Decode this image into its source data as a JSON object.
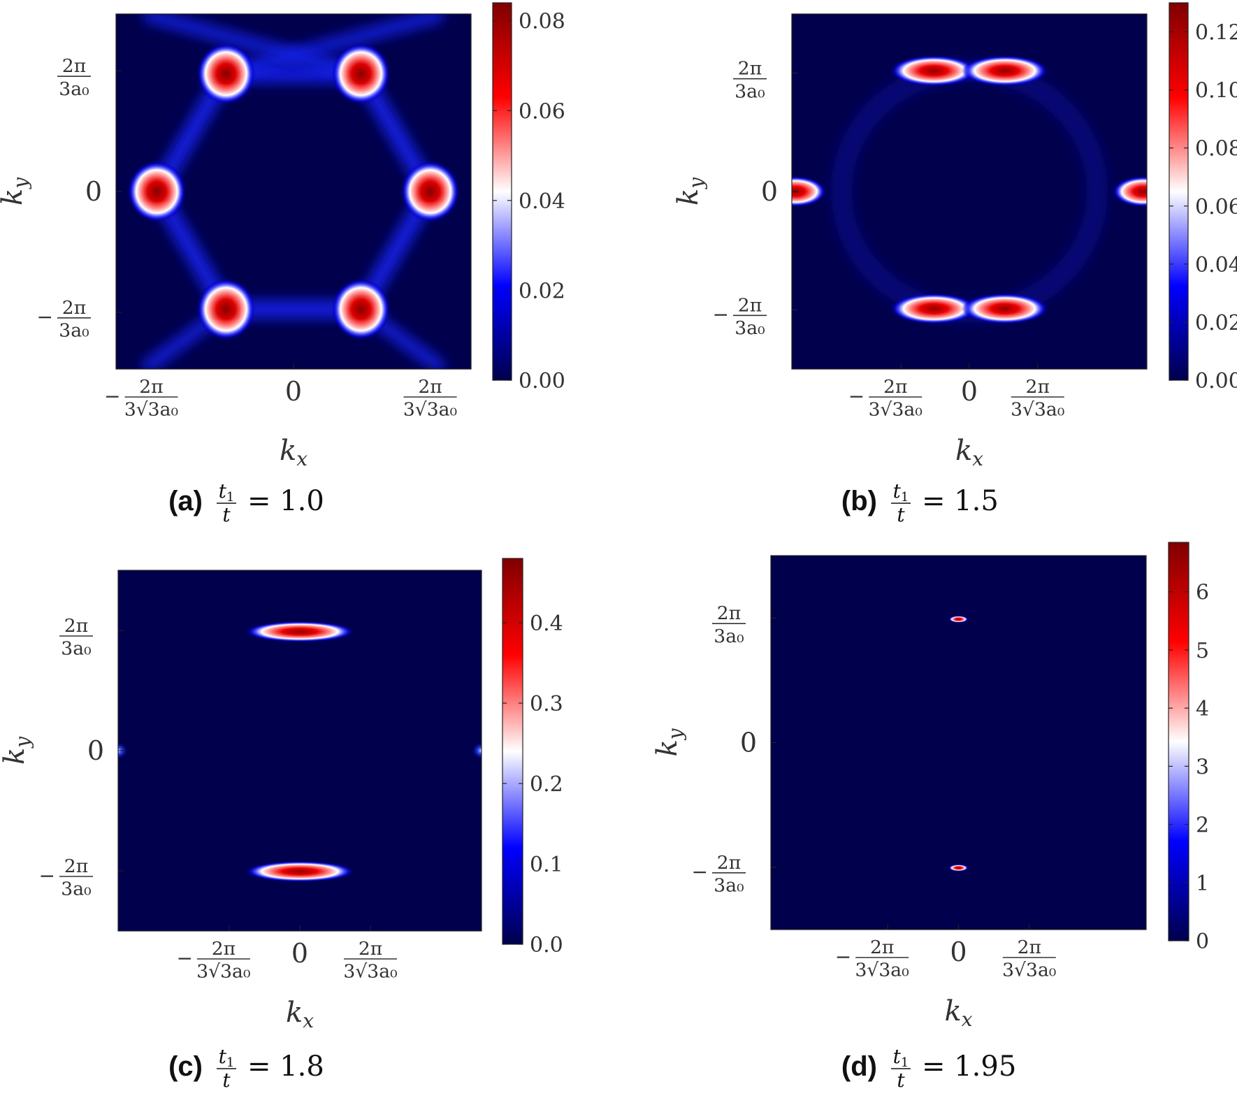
{
  "chart_data": [
    {
      "type": "heatmap",
      "panel_label": "(a)",
      "caption_ratio_num": "t",
      "caption_ratio_num_sub": "1",
      "caption_ratio_den": "t",
      "caption_value": "= 1.0",
      "xlabel": "k",
      "xlabel_sub": "x",
      "ylabel": "k",
      "ylabel_sub": "y",
      "xticks": [
        {
          "value": -0.3849,
          "sign": "−",
          "num": "2π",
          "den": "3√3a₀"
        },
        {
          "value": 0,
          "text": "0"
        },
        {
          "value": 0.3849,
          "sign": "",
          "num": "2π",
          "den": "3√3a₀"
        }
      ],
      "yticks": [
        {
          "value": 0.6667,
          "sign": "",
          "num": "2π",
          "den": "3a₀"
        },
        {
          "value": 0,
          "text": "0"
        },
        {
          "value": -0.6667,
          "sign": "−",
          "num": "2π",
          "den": "3a₀"
        }
      ],
      "xlim": [
        -0.5,
        0.5
      ],
      "ylim": [
        -0.98,
        0.98
      ],
      "colorbar": {
        "ticks": [
          "0.00",
          "0.02",
          "0.04",
          "0.06",
          "0.08"
        ],
        "tick_values": [
          0,
          0.02,
          0.04,
          0.06,
          0.08
        ],
        "vmin": 0,
        "vmax": 0.084,
        "colormap": "seismic"
      },
      "hotspots": [
        {
          "kx": -0.19,
          "ky": 0.65,
          "peak": 0.084,
          "shape": "triangle"
        },
        {
          "kx": 0.19,
          "ky": 0.65,
          "peak": 0.084,
          "shape": "triangle"
        },
        {
          "kx": -0.385,
          "ky": 0.0,
          "peak": 0.084,
          "shape": "triangle"
        },
        {
          "kx": 0.385,
          "ky": 0.0,
          "peak": 0.084,
          "shape": "triangle"
        },
        {
          "kx": -0.19,
          "ky": -0.65,
          "peak": 0.084,
          "shape": "triangle"
        },
        {
          "kx": 0.19,
          "ky": -0.65,
          "peak": 0.084,
          "shape": "triangle"
        }
      ],
      "background_feature": "hexagonal ring of low intensity connecting hotspots"
    },
    {
      "type": "heatmap",
      "panel_label": "(b)",
      "caption_ratio_num": "t",
      "caption_ratio_num_sub": "1",
      "caption_ratio_den": "t",
      "caption_value": "= 1.5",
      "xlabel": "k",
      "xlabel_sub": "x",
      "ylabel": "k",
      "ylabel_sub": "y",
      "xticks": [
        {
          "value": -0.3849,
          "sign": "−",
          "num": "2π",
          "den": "3√3a₀"
        },
        {
          "value": 0,
          "text": "0"
        },
        {
          "value": 0.3849,
          "sign": "",
          "num": "2π",
          "den": "3√3a₀"
        }
      ],
      "yticks": [
        {
          "value": 0.6667,
          "sign": "",
          "num": "2π",
          "den": "3a₀"
        },
        {
          "value": 0,
          "text": "0"
        },
        {
          "value": -0.6667,
          "sign": "−",
          "num": "2π",
          "den": "3a₀"
        }
      ],
      "xlim": [
        -1.0,
        1.0
      ],
      "ylim": [
        -1.0,
        1.0
      ],
      "colorbar": {
        "ticks": [
          "0.00",
          "0.02",
          "0.04",
          "0.06",
          "0.08",
          "0.10",
          "0.12"
        ],
        "tick_values": [
          0,
          0.02,
          0.04,
          0.06,
          0.08,
          0.1,
          0.12
        ],
        "vmin": 0,
        "vmax": 0.13,
        "colormap": "seismic"
      },
      "hotspots": [
        {
          "kx": -0.2,
          "ky": 0.68,
          "peak": 0.13,
          "shape": "lobe"
        },
        {
          "kx": 0.2,
          "ky": 0.68,
          "peak": 0.13,
          "shape": "lobe"
        },
        {
          "kx": -0.2,
          "ky": -0.66,
          "peak": 0.13,
          "shape": "lobe"
        },
        {
          "kx": 0.2,
          "ky": -0.66,
          "peak": 0.13,
          "shape": "lobe"
        },
        {
          "kx": -0.98,
          "ky": 0.0,
          "peak": 0.13,
          "shape": "lobe"
        },
        {
          "kx": 0.98,
          "ky": 0.0,
          "peak": 0.13,
          "shape": "lobe"
        }
      ],
      "background_feature": "faint ring of low intensity"
    },
    {
      "type": "heatmap",
      "panel_label": "(c)",
      "caption_ratio_num": "t",
      "caption_ratio_num_sub": "1",
      "caption_ratio_den": "t",
      "caption_value": "= 1.8",
      "xlabel": "k",
      "xlabel_sub": "x",
      "ylabel": "k",
      "ylabel_sub": "y",
      "xticks": [
        {
          "value": -0.3849,
          "sign": "−",
          "num": "2π",
          "den": "3√3a₀"
        },
        {
          "value": 0,
          "text": "0"
        },
        {
          "value": 0.3849,
          "sign": "",
          "num": "2π",
          "den": "3√3a₀"
        }
      ],
      "yticks": [
        {
          "value": 0.6667,
          "sign": "",
          "num": "2π",
          "den": "3a₀"
        },
        {
          "value": 0,
          "text": "0"
        },
        {
          "value": -0.6667,
          "sign": "−",
          "num": "2π",
          "den": "3a₀"
        }
      ],
      "xlim": [
        -0.99,
        0.99
      ],
      "ylim": [
        -1.0,
        1.0
      ],
      "colorbar": {
        "ticks": [
          "0.0",
          "0.1",
          "0.2",
          "0.3",
          "0.4"
        ],
        "tick_values": [
          0,
          0.1,
          0.2,
          0.3,
          0.4
        ],
        "vmin": 0,
        "vmax": 0.48,
        "colormap": "seismic"
      },
      "hotspots": [
        {
          "kx": 0.0,
          "ky": 0.66,
          "peak": 0.48,
          "shape": "ellipse"
        },
        {
          "kx": 0.0,
          "ky": -0.67,
          "peak": 0.48,
          "shape": "ellipse"
        },
        {
          "kx": -0.99,
          "ky": 0.0,
          "peak": 0.1,
          "shape": "edge"
        },
        {
          "kx": 0.99,
          "ky": 0.0,
          "peak": 0.1,
          "shape": "edge"
        }
      ]
    },
    {
      "type": "heatmap",
      "panel_label": "(d)",
      "caption_ratio_num": "t",
      "caption_ratio_num_sub": "1",
      "caption_ratio_den": "t",
      "caption_value": "= 1.95",
      "xlabel": "k",
      "xlabel_sub": "x",
      "ylabel": "k",
      "ylabel_sub": "y",
      "xticks": [
        {
          "value": -0.3849,
          "sign": "−",
          "num": "2π",
          "den": "3√3a₀"
        },
        {
          "value": 0,
          "text": "0"
        },
        {
          "value": 0.3849,
          "sign": "",
          "num": "2π",
          "den": "3√3a₀"
        }
      ],
      "yticks": [
        {
          "value": 0.6667,
          "sign": "",
          "num": "2π",
          "den": "3a₀"
        },
        {
          "value": 0,
          "text": "0"
        },
        {
          "value": -0.6667,
          "sign": "−",
          "num": "2π",
          "den": "3a₀"
        }
      ],
      "xlim": [
        -1.02,
        1.02
      ],
      "ylim": [
        -1.0,
        1.0
      ],
      "colorbar": {
        "ticks": [
          "0",
          "1",
          "2",
          "3",
          "4",
          "5",
          "6"
        ],
        "tick_values": [
          0,
          1,
          2,
          3,
          4,
          5,
          6
        ],
        "vmin": 0,
        "vmax": 6.85,
        "colormap": "seismic"
      },
      "hotspots": [
        {
          "kx": 0.0,
          "ky": 0.66,
          "peak": 6.85,
          "shape": "dot"
        },
        {
          "kx": 0.0,
          "ky": -0.67,
          "peak": 6.85,
          "shape": "dot"
        }
      ]
    }
  ]
}
